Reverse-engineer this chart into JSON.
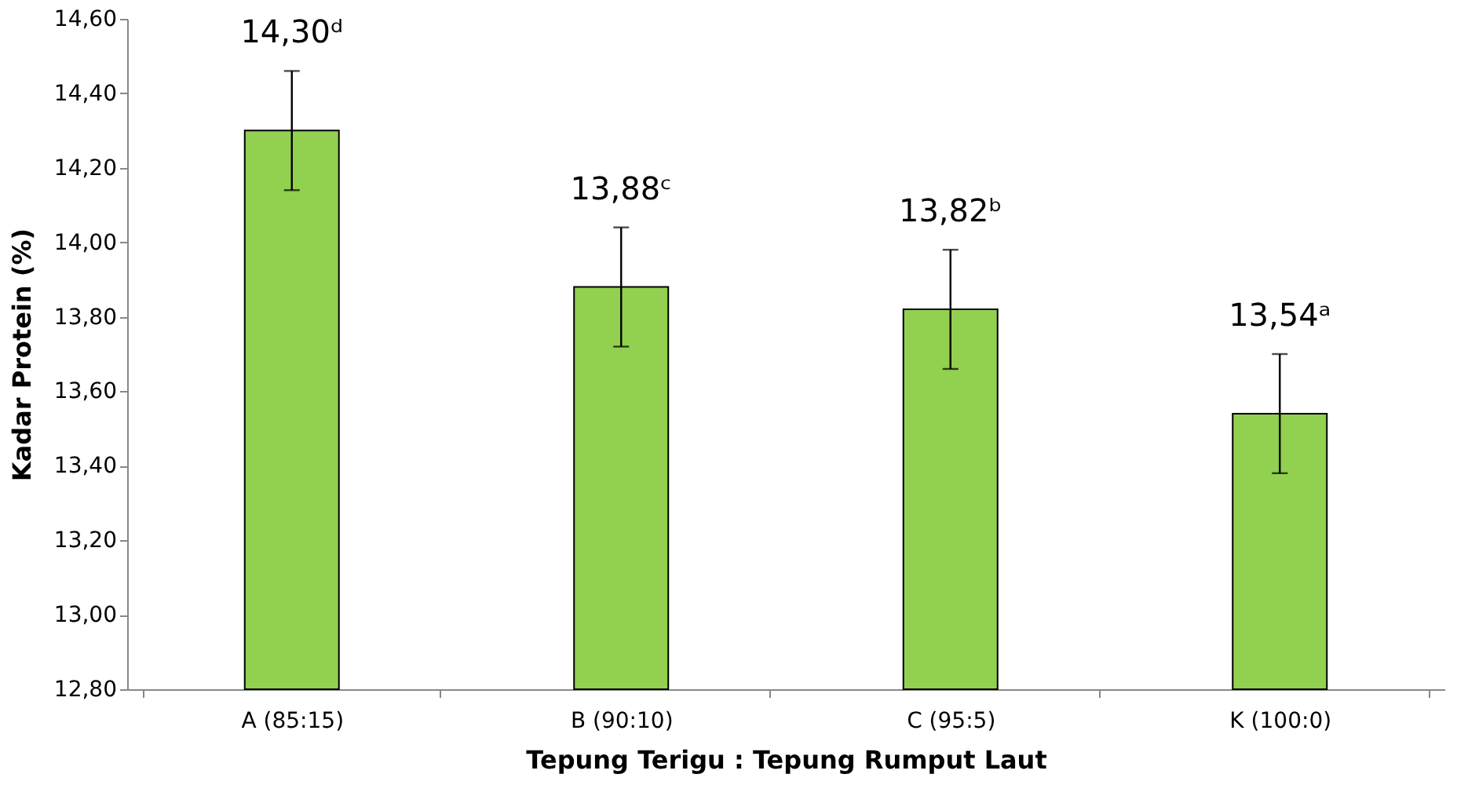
{
  "chart_data": {
    "type": "bar",
    "xlabel": "Tepung Terigu : Tepung Rumput Laut",
    "ylabel": "Kadar  Protein (%)",
    "categories": [
      "A (85:15)",
      "B (90:10)",
      "C (95:5)",
      "K (100:0)"
    ],
    "values": [
      14.3,
      13.88,
      13.82,
      13.54
    ],
    "errors": [
      0.16,
      0.16,
      0.16,
      0.16
    ],
    "value_labels": [
      "14,30ᵈ",
      "13,88ᶜ",
      "13,82ᵇ",
      "13,54ᵃ"
    ],
    "color": "#92d050",
    "ylim": [
      12.8,
      14.6
    ],
    "yticks": [
      {
        "value": 12.8,
        "label": "12,80"
      },
      {
        "value": 13.0,
        "label": "13,00"
      },
      {
        "value": 13.2,
        "label": "13,20"
      },
      {
        "value": 13.4,
        "label": "13,40"
      },
      {
        "value": 13.6,
        "label": "13,60"
      },
      {
        "value": 13.8,
        "label": "13,80"
      },
      {
        "value": 14.0,
        "label": "14,00"
      },
      {
        "value": 14.2,
        "label": "14,20"
      },
      {
        "value": 14.4,
        "label": "14,40"
      },
      {
        "value": 14.6,
        "label": "14,60"
      }
    ],
    "grid": false
  }
}
